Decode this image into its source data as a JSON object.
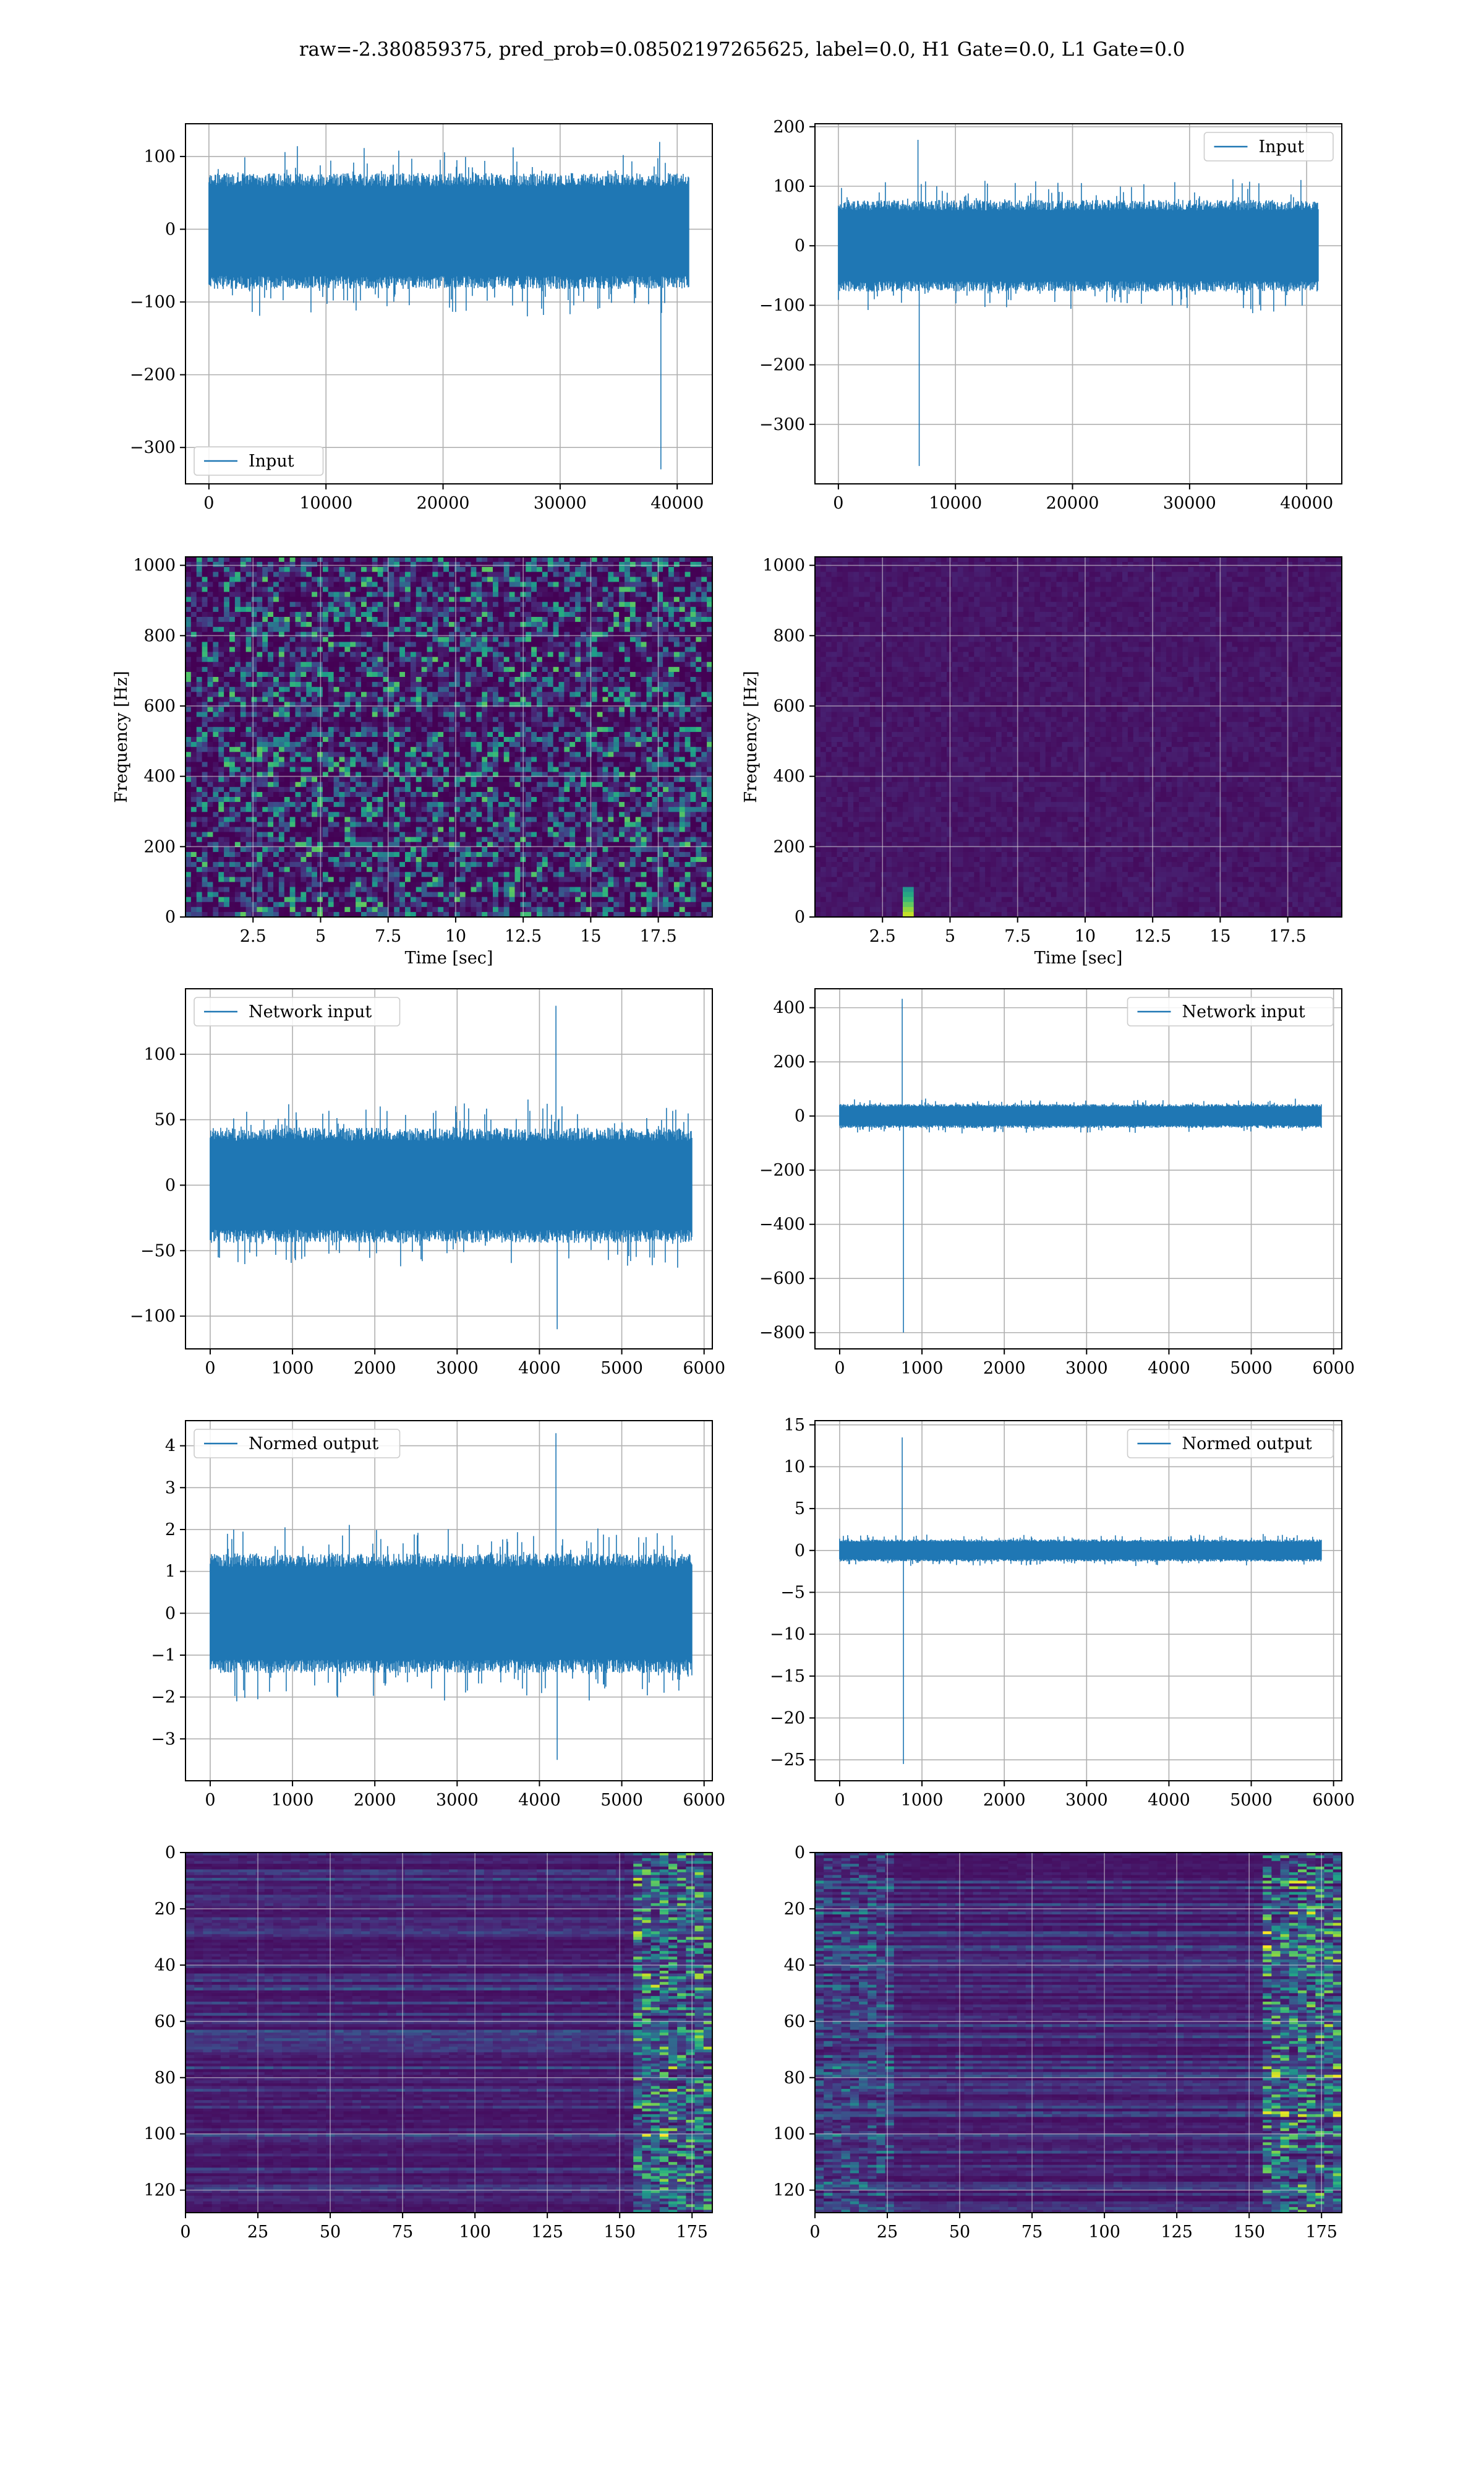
{
  "title": "raw=-2.380859375, pred_prob=0.08502197265625, label=0.0, H1 Gate=0.0, L1 Gate=0.0",
  "colors": {
    "line": "#1f77b4",
    "grid": "#b0b0b0",
    "viridis": [
      "#440154",
      "#482878",
      "#3e4989",
      "#31688e",
      "#26828e",
      "#1f9e89",
      "#35b779",
      "#6ece58",
      "#b5de2b",
      "#fde725"
    ]
  },
  "chart_data": [
    {
      "id": "input-h1",
      "type": "line",
      "legend": "Input",
      "legend_loc": "lower-left",
      "xlim": [
        -2000,
        43000
      ],
      "ylim": [
        -350,
        145
      ],
      "xticks": [
        0,
        10000,
        20000,
        30000,
        40000
      ],
      "yticks": [
        100,
        0,
        -100,
        -200,
        -300
      ],
      "n_points": 40960,
      "band": [
        -75,
        70
      ],
      "peak_high": 120,
      "peak_low": -330,
      "grid": true
    },
    {
      "id": "input-l1",
      "type": "line",
      "legend": "Input",
      "legend_loc": "upper-right",
      "xlim": [
        -2000,
        43000
      ],
      "ylim": [
        -400,
        205
      ],
      "xticks": [
        0,
        10000,
        20000,
        30000,
        40000
      ],
      "yticks": [
        200,
        100,
        0,
        -100,
        -200,
        -300
      ],
      "n_points": 40960,
      "band": [
        -70,
        70
      ],
      "peak_high": 178,
      "peak_low": -370,
      "grid": true
    },
    {
      "id": "spec-h1",
      "type": "heatmap",
      "xlabel": "Time [sec]",
      "ylabel": "Frequency [Hz]",
      "xlim": [
        0,
        19.5
      ],
      "ylim": [
        0,
        1024
      ],
      "xticks": [
        2.5,
        5.0,
        7.5,
        10.0,
        12.5,
        15.0,
        17.5
      ],
      "yticks": [
        0,
        200,
        400,
        600,
        800,
        1000
      ],
      "grid": true
    },
    {
      "id": "spec-l1",
      "type": "heatmap",
      "xlabel": "Time [sec]",
      "ylabel": "Frequency [Hz]",
      "xlim": [
        0,
        19.5
      ],
      "ylim": [
        0,
        1024
      ],
      "xticks": [
        2.5,
        5.0,
        7.5,
        10.0,
        12.5,
        15.0,
        17.5
      ],
      "yticks": [
        0,
        200,
        400,
        600,
        800,
        1000
      ],
      "grid": true
    },
    {
      "id": "netin-h1",
      "type": "line",
      "legend": "Network input",
      "legend_loc": "upper-left",
      "xlim": [
        -300,
        6100
      ],
      "ylim": [
        -125,
        150
      ],
      "xticks": [
        0,
        1000,
        2000,
        3000,
        4000,
        5000,
        6000
      ],
      "yticks": [
        100,
        50,
        0,
        -50,
        -100
      ],
      "n_points": 5850,
      "band": [
        -40,
        40
      ],
      "peak_high": 137,
      "peak_low": -110,
      "grid": true
    },
    {
      "id": "netin-l1",
      "type": "line",
      "legend": "Network input",
      "legend_loc": "upper-right",
      "xlim": [
        -300,
        6100
      ],
      "ylim": [
        -860,
        470
      ],
      "xticks": [
        0,
        1000,
        2000,
        3000,
        4000,
        5000,
        6000
      ],
      "yticks": [
        400,
        200,
        0,
        -200,
        -400,
        -600,
        -800
      ],
      "n_points": 5850,
      "band": [
        -40,
        40
      ],
      "peak_high": 433,
      "peak_low": -800,
      "grid": true
    },
    {
      "id": "normed-h1",
      "type": "line",
      "legend": "Normed output",
      "legend_loc": "upper-left",
      "xlim": [
        -300,
        6100
      ],
      "ylim": [
        -4,
        4.6
      ],
      "xticks": [
        0,
        1000,
        2000,
        3000,
        4000,
        5000,
        6000
      ],
      "yticks": [
        4,
        3,
        2,
        1,
        0,
        -1,
        -2,
        -3
      ],
      "n_points": 5850,
      "band": [
        -1.3,
        1.3
      ],
      "peak_high": 4.3,
      "peak_low": -3.5,
      "grid": true
    },
    {
      "id": "normed-l1",
      "type": "line",
      "legend": "Normed output",
      "legend_loc": "upper-right",
      "xlim": [
        -300,
        6100
      ],
      "ylim": [
        -27.5,
        15.5
      ],
      "xticks": [
        0,
        1000,
        2000,
        3000,
        4000,
        5000,
        6000
      ],
      "yticks": [
        15,
        10,
        5,
        0,
        -5,
        -10,
        -15,
        -20,
        -25
      ],
      "n_points": 5850,
      "band": [
        -1.2,
        1.2
      ],
      "peak_high": 13.5,
      "peak_low": -25.5,
      "grid": true
    },
    {
      "id": "feat-h1",
      "type": "heatmap",
      "xlim": [
        0,
        182
      ],
      "ylim": [
        128,
        0
      ],
      "xticks": [
        0,
        25,
        50,
        75,
        100,
        125,
        150,
        175
      ],
      "yticks": [
        0,
        20,
        40,
        60,
        80,
        100,
        120
      ],
      "grid": true
    },
    {
      "id": "feat-l1",
      "type": "heatmap",
      "xlim": [
        0,
        182
      ],
      "ylim": [
        128,
        0
      ],
      "xticks": [
        0,
        25,
        50,
        75,
        100,
        125,
        150,
        175
      ],
      "yticks": [
        0,
        20,
        40,
        60,
        80,
        100,
        120
      ],
      "grid": true
    }
  ]
}
